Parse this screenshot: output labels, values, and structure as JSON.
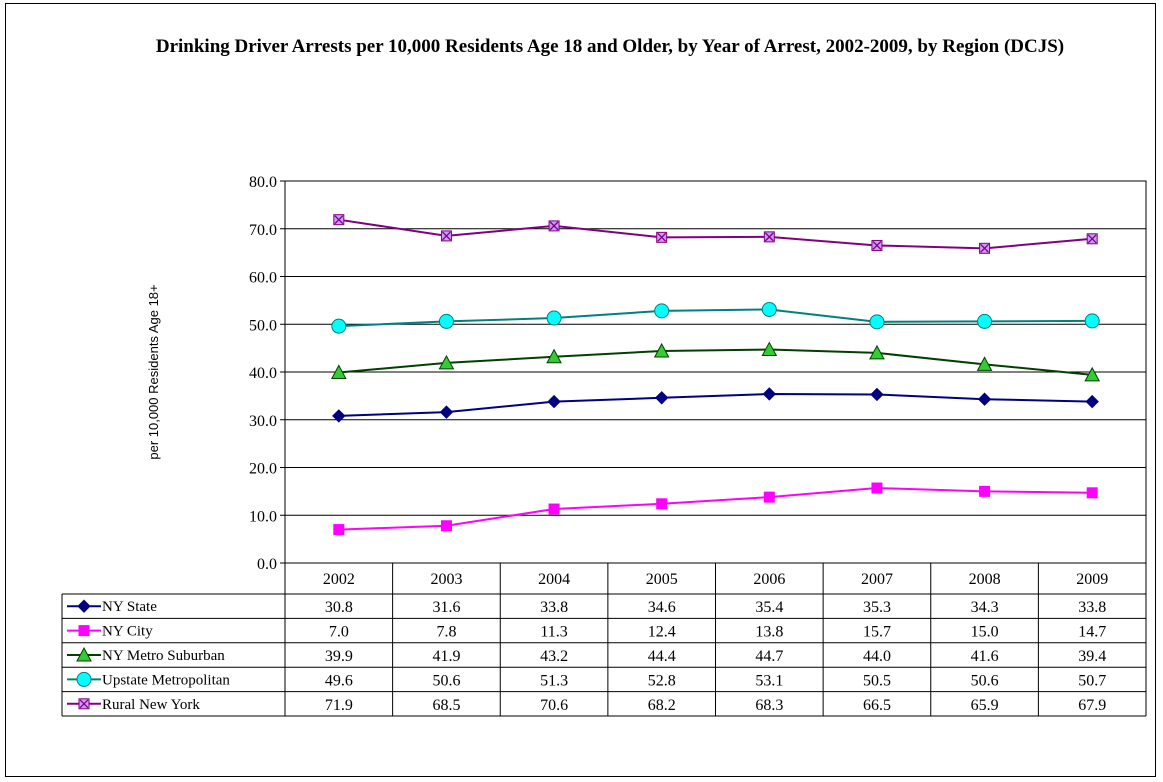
{
  "chart_data": {
    "type": "line",
    "title": "Drinking Driver Arrests per 10,000 Residents Age 18 and Older, by Year of Arrest, 2002-2009, by Region (DCJS)",
    "xlabel": "",
    "ylabel": "per 10,000 Residents Age 18+",
    "ylim": [
      0,
      80
    ],
    "yticks": [
      "0.0",
      "10.0",
      "20.0",
      "30.0",
      "40.0",
      "50.0",
      "60.0",
      "70.0",
      "80.0"
    ],
    "grid": true,
    "legend": "data table below chart",
    "categories": [
      "2002",
      "2003",
      "2004",
      "2005",
      "2006",
      "2007",
      "2008",
      "2009"
    ],
    "series": [
      {
        "name": "NY State",
        "color": "#000080",
        "marker": "diamond",
        "values": [
          30.8,
          31.6,
          33.8,
          34.6,
          35.4,
          35.3,
          34.3,
          33.8
        ],
        "labels": [
          "30.8",
          "31.6",
          "33.8",
          "34.6",
          "35.4",
          "35.3",
          "34.3",
          "33.8"
        ]
      },
      {
        "name": "NY City",
        "color": "#FF00FF",
        "marker": "square",
        "values": [
          7.0,
          7.8,
          11.3,
          12.4,
          13.8,
          15.7,
          15.0,
          14.7
        ],
        "labels": [
          "7.0",
          "7.8",
          "11.3",
          "12.4",
          "13.8",
          "15.7",
          "15.0",
          "14.7"
        ]
      },
      {
        "name": "NY Metro Suburban",
        "color": "#004000",
        "fill": "#33CC33",
        "marker": "triangle",
        "values": [
          39.9,
          41.9,
          43.2,
          44.4,
          44.7,
          44.0,
          41.6,
          39.4
        ],
        "labels": [
          "39.9",
          "41.9",
          "43.2",
          "44.4",
          "44.7",
          "44.0",
          "41.6",
          "39.4"
        ]
      },
      {
        "name": "Upstate Metropolitan",
        "color": "#008080",
        "fill": "#00FFFF",
        "marker": "circle",
        "values": [
          49.6,
          50.6,
          51.3,
          52.8,
          53.1,
          50.5,
          50.6,
          50.7
        ],
        "labels": [
          "49.6",
          "50.6",
          "51.3",
          "52.8",
          "53.1",
          "50.5",
          "50.6",
          "50.7"
        ]
      },
      {
        "name": "Rural New York",
        "color": "#800080",
        "fill": "#CC99FF",
        "marker": "x",
        "values": [
          71.9,
          68.5,
          70.6,
          68.2,
          68.3,
          66.5,
          65.9,
          67.9
        ],
        "labels": [
          "71.9",
          "68.5",
          "70.6",
          "68.2",
          "68.3",
          "66.5",
          "65.9",
          "67.9"
        ]
      }
    ]
  }
}
